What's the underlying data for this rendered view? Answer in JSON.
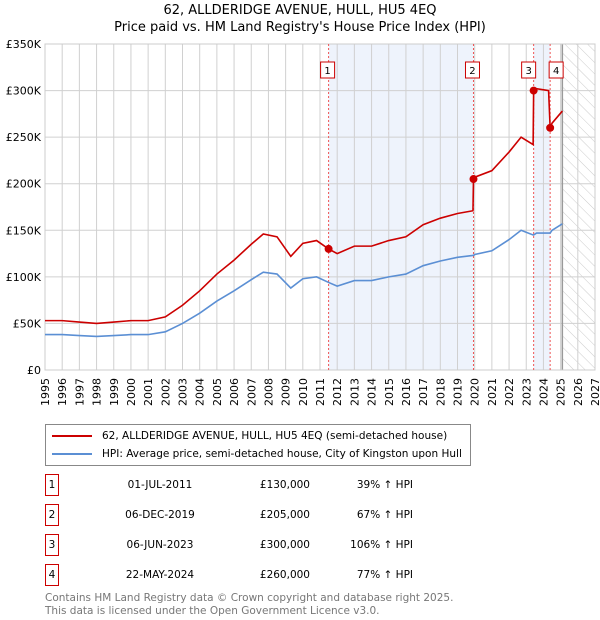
{
  "title": "62, ALLDERIDGE AVENUE, HULL, HU5 4EQ",
  "subtitle": "Price paid vs. HM Land Registry's House Price Index (HPI)",
  "chart_data": {
    "type": "line",
    "xlim": [
      1995,
      2027
    ],
    "ylim": [
      0,
      350000
    ],
    "yticks": [
      {
        "v": 0,
        "label": "£0"
      },
      {
        "v": 50000,
        "label": "£50K"
      },
      {
        "v": 100000,
        "label": "£100K"
      },
      {
        "v": 150000,
        "label": "£150K"
      },
      {
        "v": 200000,
        "label": "£200K"
      },
      {
        "v": 250000,
        "label": "£250K"
      },
      {
        "v": 300000,
        "label": "£300K"
      },
      {
        "v": 350000,
        "label": "£350K"
      }
    ],
    "xticks": [
      "1995",
      "1996",
      "1997",
      "1998",
      "1999",
      "2000",
      "2001",
      "2002",
      "2003",
      "2004",
      "2005",
      "2006",
      "2007",
      "2008",
      "2009",
      "2010",
      "2011",
      "2012",
      "2013",
      "2014",
      "2015",
      "2016",
      "2017",
      "2018",
      "2019",
      "2020",
      "2021",
      "2022",
      "2023",
      "2024",
      "2025",
      "2026",
      "2027"
    ],
    "future_start": 2025.1,
    "series": [
      {
        "name": "62, ALLDERIDGE AVENUE, HULL, HU5 4EQ (semi-detached house)",
        "color": "#cc0000",
        "x": [
          1995,
          1996,
          1997,
          1998,
          1999,
          2000,
          2001,
          2002,
          2003,
          2004,
          2005,
          2006,
          2007,
          2007.7,
          2008.5,
          2009.3,
          2010,
          2010.8,
          2011.5,
          2012,
          2013,
          2014,
          2015,
          2016,
          2017,
          2018,
          2019,
          2019.9,
          2019.93,
          2020,
          2021,
          2022,
          2022.7,
          2023.4,
          2023.43,
          2023.6,
          2024.3,
          2024.39,
          2024.5,
          2025.1
        ],
        "y": [
          53000,
          53000,
          51500,
          50000,
          51500,
          53000,
          53000,
          57000,
          69500,
          85000,
          103000,
          118000,
          135000,
          146000,
          143000,
          122000,
          136000,
          139000,
          130000,
          125000,
          133000,
          133000,
          139000,
          143000,
          156000,
          163000,
          168000,
          171000,
          205000,
          207000,
          214000,
          234000,
          250000,
          242000,
          300000,
          302000,
          300000,
          260000,
          265000,
          278000
        ]
      },
      {
        "name": "HPI: Average price, semi-detached house, City of Kingston upon Hull",
        "color": "#5b8fd4",
        "x": [
          1995,
          1996,
          1997,
          1998,
          1999,
          2000,
          2001,
          2002,
          2003,
          2004,
          2005,
          2006,
          2007,
          2007.7,
          2008.5,
          2009.3,
          2010,
          2010.8,
          2011.5,
          2012,
          2013,
          2014,
          2015,
          2016,
          2017,
          2018,
          2019,
          2019.9,
          2019.93,
          2020,
          2021,
          2022,
          2022.7,
          2023.4,
          2023.43,
          2023.6,
          2024.3,
          2024.39,
          2024.5,
          2025.1
        ],
        "y": [
          38000,
          38000,
          37000,
          36000,
          37000,
          38000,
          38000,
          41000,
          50000,
          61000,
          74000,
          85000,
          97000,
          105000,
          103000,
          88000,
          98000,
          100000,
          94000,
          90000,
          96000,
          96000,
          100000,
          103000,
          112000,
          117000,
          121000,
          123000,
          123000,
          124000,
          128000,
          140000,
          150000,
          145000,
          145000,
          147000,
          147000,
          147000,
          150000,
          157000
        ]
      }
    ],
    "sales": [
      {
        "n": "1",
        "x": 2011.5,
        "y": 130000,
        "date": "01-JUL-2011",
        "price": "£130,000",
        "hpi": "39% ↑ HPI"
      },
      {
        "n": "2",
        "x": 2019.93,
        "y": 205000,
        "date": "06-DEC-2019",
        "price": "£205,000",
        "hpi": "67% ↑ HPI"
      },
      {
        "n": "3",
        "x": 2023.43,
        "y": 300000,
        "date": "06-JUN-2023",
        "price": "£300,000",
        "hpi": "106% ↑ HPI"
      },
      {
        "n": "4",
        "x": 2024.39,
        "y": 260000,
        "date": "22-MAY-2024",
        "price": "£260,000",
        "hpi": "77% ↑ HPI"
      }
    ]
  },
  "legend": {
    "red": "62, ALLDERIDGE AVENUE, HULL, HU5 4EQ (semi-detached house)",
    "blue": "HPI: Average price, semi-detached house, City of Kingston upon Hull"
  },
  "footer": [
    "Contains HM Land Registry data © Crown copyright and database right 2025.",
    "This data is licensed under the Open Government Licence v3.0."
  ]
}
